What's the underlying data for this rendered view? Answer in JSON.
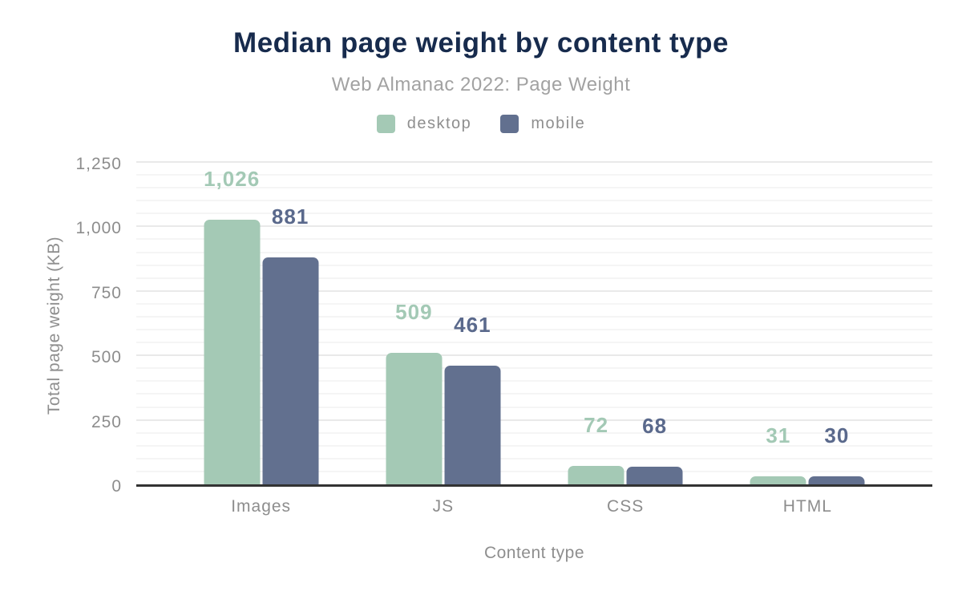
{
  "title": "Median page weight by content type",
  "subtitle": "Web Almanac 2022: Page Weight",
  "legend": {
    "items": [
      {
        "label": "desktop",
        "color": "#a4c9b5"
      },
      {
        "label": "mobile",
        "color": "#62708f"
      }
    ]
  },
  "colors": {
    "title": "#172b4d",
    "subtitle": "#a2a2a2",
    "axis_text": "#8d8d8d",
    "baseline": "#333333",
    "major_gridline": "#e9e9e9",
    "minor_gridline": "#f5f5f5"
  },
  "chart_data": {
    "type": "bar",
    "title": "Median page weight by content type",
    "subtitle": "Web Almanac 2022: Page Weight",
    "xlabel": "Content type",
    "ylabel": "Total page weight (KB)",
    "categories": [
      "Images",
      "JS",
      "CSS",
      "HTML"
    ],
    "series": [
      {
        "name": "desktop",
        "color": "#a4c9b5",
        "label_color": "#a3c9b5",
        "values": [
          1026,
          509,
          72,
          31
        ],
        "labels": [
          "1,026",
          "509",
          "72",
          "31"
        ]
      },
      {
        "name": "mobile",
        "color": "#62708f",
        "label_color": "#5a698c",
        "values": [
          881,
          461,
          68,
          30
        ],
        "labels": [
          "881",
          "461",
          "68",
          "30"
        ]
      }
    ],
    "ylim": [
      0,
      1250
    ],
    "yticks": [
      0,
      250,
      500,
      750,
      1000,
      1250
    ],
    "ytick_labels": [
      "0",
      "250",
      "500",
      "750",
      "1,000",
      "1,250"
    ],
    "minor_grid_step": 50,
    "major_grid_step": 250,
    "grid": true,
    "legend_position": "top"
  }
}
